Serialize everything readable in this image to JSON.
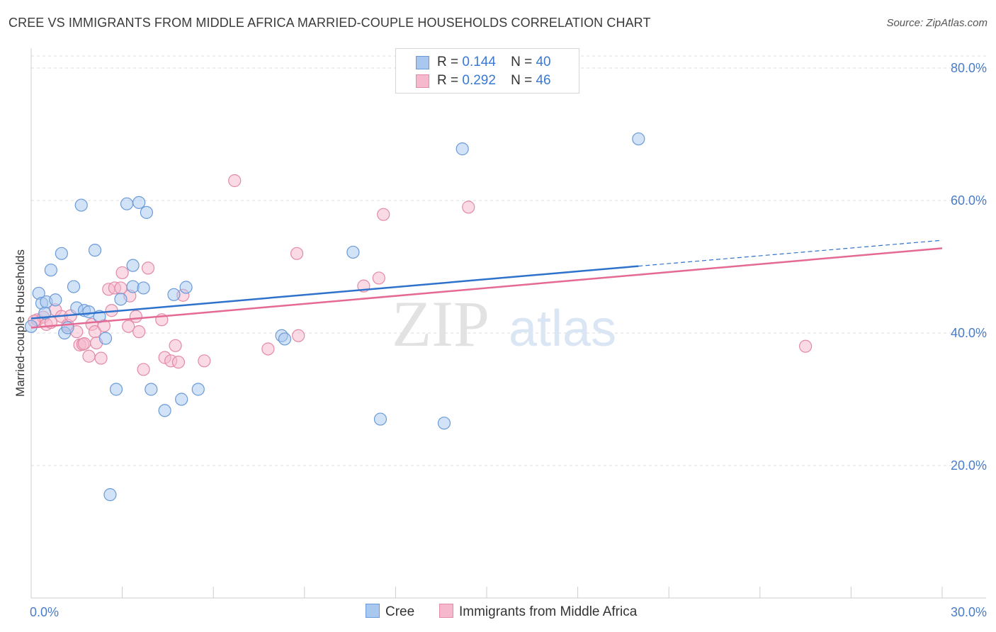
{
  "title": "CREE VS IMMIGRANTS FROM MIDDLE AFRICA MARRIED-COUPLE HOUSEHOLDS CORRELATION CHART",
  "source": "Source: ZipAtlas.com",
  "watermark": {
    "zip": "ZIP",
    "atlas": "atlas"
  },
  "legend": {
    "r_label": "R =",
    "n_label": "N =",
    "series": [
      {
        "name": "Cree",
        "r": "0.144",
        "n": "40",
        "fill": "#a8c8f0",
        "stroke": "#6b9ad8"
      },
      {
        "name": "Immigrants from Middle Africa",
        "r": "0.292",
        "n": "46",
        "fill": "#f5b8cc",
        "stroke": "#e38aa6"
      }
    ]
  },
  "colors": {
    "blue_line": "#2f72cc",
    "pink_line": "#e46a93",
    "tick_text": "#4a7cc9",
    "grid": "#dddddd"
  },
  "chart_data": {
    "type": "scatter",
    "title": "CREE VS IMMIGRANTS FROM MIDDLE AFRICA MARRIED-COUPLE HOUSEHOLDS CORRELATION CHART",
    "xlabel": "",
    "ylabel": "Married-couple Households",
    "xlim": [
      0,
      30
    ],
    "ylim": [
      0,
      83
    ],
    "x_tick_labels": [
      {
        "value": 0,
        "label": "0.0%"
      },
      {
        "value": 30,
        "label": "30.0%"
      }
    ],
    "y_ticks": [
      {
        "value": 20,
        "label": "20.0%"
      },
      {
        "value": 40,
        "label": "40.0%"
      },
      {
        "value": 60,
        "label": "60.0%"
      },
      {
        "value": 80,
        "label": "80.0%"
      }
    ],
    "grid": true,
    "series": [
      {
        "name": "Cree",
        "r": 0.144,
        "n": 40,
        "points": [
          [
            0.0,
            41.0
          ],
          [
            0.25,
            46.0
          ],
          [
            0.35,
            44.5
          ],
          [
            0.5,
            44.7
          ],
          [
            0.65,
            49.5
          ],
          [
            0.8,
            45.0
          ],
          [
            1.0,
            52.0
          ],
          [
            1.1,
            40.0
          ],
          [
            1.2,
            40.8
          ],
          [
            1.4,
            47.0
          ],
          [
            1.5,
            43.8
          ],
          [
            1.65,
            59.3
          ],
          [
            1.75,
            43.4
          ],
          [
            1.9,
            43.2
          ],
          [
            2.1,
            52.5
          ],
          [
            2.25,
            42.5
          ],
          [
            2.45,
            39.2
          ],
          [
            2.6,
            15.6
          ],
          [
            2.8,
            31.5
          ],
          [
            2.95,
            45.1
          ],
          [
            3.15,
            59.5
          ],
          [
            3.35,
            50.2
          ],
          [
            3.35,
            47.0
          ],
          [
            3.55,
            59.7
          ],
          [
            3.7,
            46.8
          ],
          [
            3.8,
            58.2
          ],
          [
            3.95,
            31.5
          ],
          [
            4.4,
            28.3
          ],
          [
            4.7,
            45.8
          ],
          [
            4.95,
            30.0
          ],
          [
            5.1,
            46.9
          ],
          [
            5.5,
            31.5
          ],
          [
            8.25,
            39.6
          ],
          [
            8.35,
            39.1
          ],
          [
            10.6,
            52.2
          ],
          [
            11.5,
            27.0
          ],
          [
            13.6,
            26.4
          ],
          [
            14.2,
            67.8
          ],
          [
            20.0,
            69.3
          ],
          [
            0.45,
            43.0
          ]
        ]
      },
      {
        "name": "Immigrants from Middle Africa",
        "r": 0.292,
        "n": 46,
        "points": [
          [
            0.2,
            42.0
          ],
          [
            0.4,
            42.4
          ],
          [
            0.5,
            41.3
          ],
          [
            0.65,
            41.6
          ],
          [
            0.8,
            43.5
          ],
          [
            1.0,
            42.5
          ],
          [
            1.2,
            41.2
          ],
          [
            1.3,
            42.6
          ],
          [
            1.5,
            40.2
          ],
          [
            1.6,
            38.2
          ],
          [
            1.7,
            38.3
          ],
          [
            1.75,
            38.4
          ],
          [
            1.9,
            36.5
          ],
          [
            2.0,
            41.3
          ],
          [
            2.1,
            40.2
          ],
          [
            2.15,
            38.5
          ],
          [
            2.3,
            36.2
          ],
          [
            2.4,
            41.1
          ],
          [
            2.55,
            46.6
          ],
          [
            2.65,
            43.4
          ],
          [
            2.75,
            46.8
          ],
          [
            2.95,
            46.8
          ],
          [
            3.0,
            49.1
          ],
          [
            3.2,
            41.0
          ],
          [
            3.25,
            45.6
          ],
          [
            3.45,
            42.5
          ],
          [
            3.55,
            40.2
          ],
          [
            3.7,
            34.5
          ],
          [
            3.85,
            49.8
          ],
          [
            4.3,
            42.0
          ],
          [
            4.4,
            36.3
          ],
          [
            4.6,
            35.8
          ],
          [
            4.75,
            38.1
          ],
          [
            4.85,
            35.6
          ],
          [
            5.0,
            45.7
          ],
          [
            5.7,
            35.8
          ],
          [
            6.7,
            63.0
          ],
          [
            7.8,
            37.6
          ],
          [
            8.75,
            52.0
          ],
          [
            8.8,
            39.6
          ],
          [
            10.95,
            47.1
          ],
          [
            11.45,
            48.3
          ],
          [
            11.6,
            57.9
          ],
          [
            14.4,
            59.0
          ],
          [
            25.5,
            38.0
          ],
          [
            0.1,
            41.8
          ]
        ]
      }
    ],
    "trend_lines": [
      {
        "series": "Cree",
        "x_start": 0,
        "y_start": 42.2,
        "x_end": 20.0,
        "y_end": 50.1,
        "dashed_to_x": 30,
        "dashed_to_y": 54.0
      },
      {
        "series": "Immigrants from Middle Africa",
        "x_start": 0,
        "y_start": 40.8,
        "x_end": 30,
        "y_end": 52.8
      }
    ]
  }
}
